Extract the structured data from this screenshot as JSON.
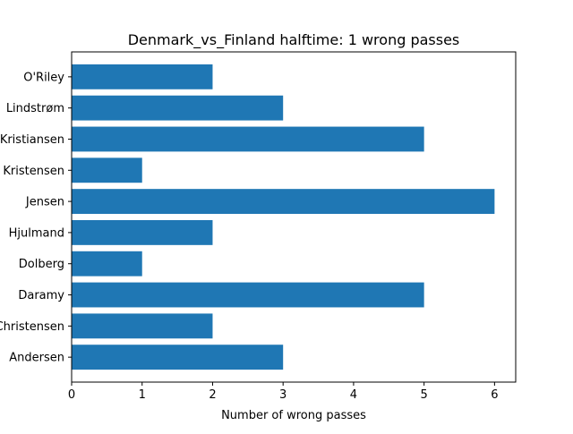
{
  "chart_data": {
    "type": "bar",
    "orientation": "horizontal",
    "title": "Denmark_vs_Finland halftime: 1 wrong passes",
    "xlabel": "Number of wrong passes",
    "ylabel": "",
    "categories": [
      "Andersen",
      "Christensen",
      "Daramy",
      "Dolberg",
      "Hjulmand",
      "Jensen",
      "Kristensen",
      "Kristiansen",
      "Lindstrøm",
      "O'Riley"
    ],
    "values": [
      3,
      2,
      5,
      1,
      2,
      6,
      1,
      5,
      3,
      2
    ],
    "xlim": [
      0,
      6.3
    ],
    "xticks": [
      0,
      1,
      2,
      3,
      4,
      5,
      6
    ],
    "grid": false,
    "bar_color": "#1f77b4"
  }
}
